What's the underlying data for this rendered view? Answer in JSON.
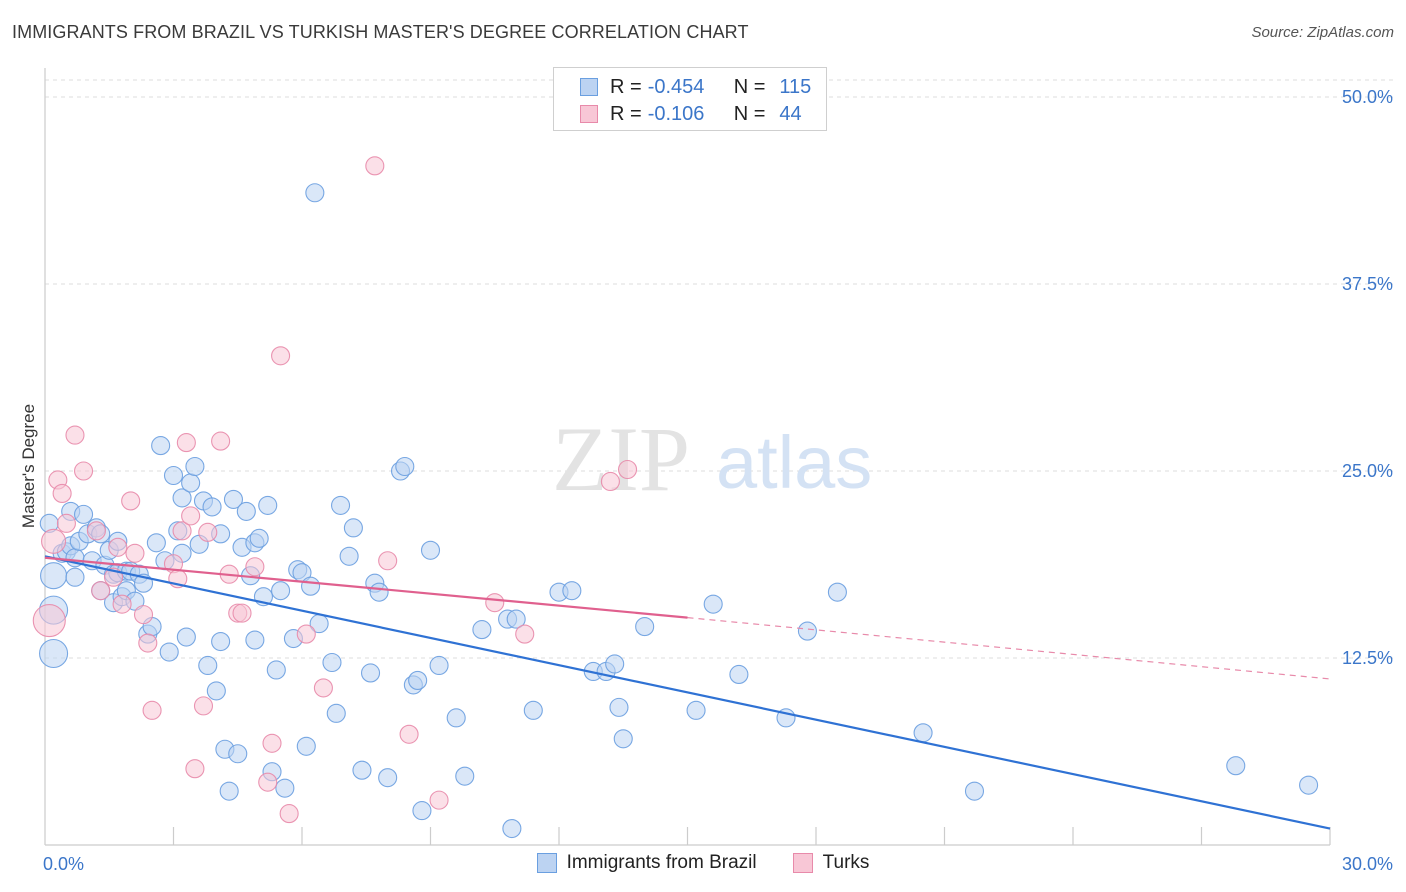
{
  "header": {
    "title": "IMMIGRANTS FROM BRAZIL VS TURKISH MASTER'S DEGREE CORRELATION CHART",
    "source": "Source: ZipAtlas.com"
  },
  "watermark": {
    "part1": "ZIP",
    "part2": "atlas"
  },
  "legend": {
    "rows": [
      {
        "r_label": "R =",
        "r_value": "-0.454",
        "n_label": "N =",
        "n_value": "115",
        "color": "#6a9fe0",
        "fill": "#bcd3f2"
      },
      {
        "r_label": "R =",
        "r_value": "-0.106",
        "n_label": "N =",
        "n_value": "44",
        "color": "#e88aaa",
        "fill": "#f8c7d6"
      }
    ]
  },
  "bottom_legend": [
    {
      "label": "Immigrants from Brazil",
      "color": "#6a9fe0",
      "fill": "#bcd3f2"
    },
    {
      "label": "Turks",
      "color": "#e88aaa",
      "fill": "#f8c7d6"
    }
  ],
  "chart_data": {
    "type": "scatter",
    "ylabel": "Master's Degree",
    "xlabel": "",
    "xlim": [
      0,
      30
    ],
    "ylim": [
      0,
      50
    ],
    "x_tick_labels": [
      "0.0%",
      "30.0%"
    ],
    "y_tick_labels": [
      "12.5%",
      "25.0%",
      "37.5%",
      "50.0%"
    ],
    "y_ticks": [
      12.5,
      25,
      37.5,
      50
    ],
    "x_minor_ticks": [
      3,
      6,
      9,
      12,
      15,
      18,
      21,
      24,
      27,
      30
    ],
    "grid": true,
    "series": [
      {
        "name": "Immigrants from Brazil",
        "color": "#6a9fe0",
        "fill": "#bcd3f2",
        "trend": {
          "x0": 0,
          "y0": 19.3,
          "x1": 30,
          "y1": 1.1
        },
        "points": [
          [
            0.2,
            18.0
          ],
          [
            0.2,
            15.7
          ],
          [
            0.2,
            12.8
          ],
          [
            0.4,
            19.5
          ],
          [
            0.5,
            19.6
          ],
          [
            0.6,
            22.3
          ],
          [
            0.6,
            20.0
          ],
          [
            0.7,
            19.2
          ],
          [
            0.7,
            17.9
          ],
          [
            0.8,
            20.3
          ],
          [
            0.9,
            22.1
          ],
          [
            1.0,
            20.8
          ],
          [
            1.1,
            19.0
          ],
          [
            1.2,
            21.2
          ],
          [
            1.3,
            20.8
          ],
          [
            1.3,
            17.0
          ],
          [
            1.4,
            18.7
          ],
          [
            1.5,
            19.7
          ],
          [
            1.6,
            16.2
          ],
          [
            1.6,
            18.1
          ],
          [
            1.7,
            20.3
          ],
          [
            1.7,
            18.2
          ],
          [
            1.8,
            16.6
          ],
          [
            1.9,
            17.0
          ],
          [
            1.9,
            18.3
          ],
          [
            2.0,
            18.3
          ],
          [
            2.1,
            16.3
          ],
          [
            2.2,
            18.1
          ],
          [
            2.3,
            17.5
          ],
          [
            2.4,
            14.1
          ],
          [
            2.5,
            14.6
          ],
          [
            2.6,
            20.2
          ],
          [
            2.7,
            26.7
          ],
          [
            2.8,
            19.0
          ],
          [
            2.9,
            12.9
          ],
          [
            3.0,
            24.7
          ],
          [
            3.1,
            21.0
          ],
          [
            3.2,
            23.2
          ],
          [
            3.2,
            19.5
          ],
          [
            3.3,
            13.9
          ],
          [
            3.4,
            24.2
          ],
          [
            3.5,
            25.3
          ],
          [
            3.6,
            20.1
          ],
          [
            3.7,
            23.0
          ],
          [
            3.8,
            12.0
          ],
          [
            3.9,
            22.6
          ],
          [
            4.0,
            10.3
          ],
          [
            4.1,
            20.8
          ],
          [
            4.1,
            13.6
          ],
          [
            4.2,
            6.4
          ],
          [
            4.3,
            3.6
          ],
          [
            4.4,
            23.1
          ],
          [
            4.5,
            6.1
          ],
          [
            4.6,
            19.9
          ],
          [
            4.7,
            22.3
          ],
          [
            4.8,
            18.0
          ],
          [
            4.9,
            13.7
          ],
          [
            4.9,
            20.2
          ],
          [
            5.0,
            20.5
          ],
          [
            5.1,
            16.6
          ],
          [
            5.2,
            22.7
          ],
          [
            5.3,
            4.9
          ],
          [
            5.4,
            11.7
          ],
          [
            5.5,
            17.0
          ],
          [
            5.6,
            3.8
          ],
          [
            5.8,
            13.8
          ],
          [
            5.9,
            18.4
          ],
          [
            6.0,
            18.2
          ],
          [
            6.1,
            6.6
          ],
          [
            6.2,
            17.3
          ],
          [
            6.3,
            43.6
          ],
          [
            6.4,
            14.8
          ],
          [
            6.7,
            12.2
          ],
          [
            6.8,
            8.8
          ],
          [
            6.9,
            22.7
          ],
          [
            7.1,
            19.3
          ],
          [
            7.2,
            21.2
          ],
          [
            7.4,
            5.0
          ],
          [
            7.6,
            11.5
          ],
          [
            7.7,
            17.5
          ],
          [
            7.8,
            16.9
          ],
          [
            8.0,
            4.5
          ],
          [
            8.3,
            25.0
          ],
          [
            8.4,
            25.3
          ],
          [
            8.6,
            10.7
          ],
          [
            8.7,
            11.0
          ],
          [
            8.8,
            2.3
          ],
          [
            9.0,
            19.7
          ],
          [
            9.2,
            12.0
          ],
          [
            9.6,
            8.5
          ],
          [
            9.8,
            4.6
          ],
          [
            10.2,
            14.4
          ],
          [
            10.8,
            15.1
          ],
          [
            10.9,
            1.1
          ],
          [
            11.0,
            15.1
          ],
          [
            11.4,
            9.0
          ],
          [
            12.0,
            16.9
          ],
          [
            12.3,
            17.0
          ],
          [
            12.8,
            11.6
          ],
          [
            13.1,
            11.6
          ],
          [
            13.3,
            12.1
          ],
          [
            13.4,
            9.2
          ],
          [
            13.5,
            7.1
          ],
          [
            14.0,
            14.6
          ],
          [
            15.2,
            9.0
          ],
          [
            15.6,
            16.1
          ],
          [
            16.2,
            11.4
          ],
          [
            17.3,
            8.5
          ],
          [
            17.8,
            14.3
          ],
          [
            18.5,
            16.9
          ],
          [
            20.5,
            7.5
          ],
          [
            21.7,
            3.6
          ],
          [
            27.8,
            5.3
          ],
          [
            29.5,
            4.0
          ],
          [
            0.1,
            21.5
          ]
        ]
      },
      {
        "name": "Turks",
        "color": "#e88aaa",
        "fill": "#f8c7d6",
        "trend": {
          "x0": 0,
          "y0": 19.2,
          "x1": 15,
          "y1": 15.2,
          "dash_x1": 30,
          "dash_y1": 11.1
        },
        "points": [
          [
            0.1,
            15.0
          ],
          [
            0.2,
            20.3
          ],
          [
            0.3,
            24.4
          ],
          [
            0.4,
            23.5
          ],
          [
            0.5,
            21.5
          ],
          [
            0.7,
            27.4
          ],
          [
            0.9,
            25.0
          ],
          [
            1.2,
            21.0
          ],
          [
            1.3,
            17.0
          ],
          [
            1.6,
            17.9
          ],
          [
            1.7,
            19.9
          ],
          [
            1.8,
            16.1
          ],
          [
            2.0,
            23.0
          ],
          [
            2.1,
            19.5
          ],
          [
            2.3,
            15.4
          ],
          [
            2.4,
            13.5
          ],
          [
            2.5,
            9.0
          ],
          [
            3.0,
            18.8
          ],
          [
            3.1,
            17.8
          ],
          [
            3.2,
            21.0
          ],
          [
            3.3,
            26.9
          ],
          [
            3.4,
            22.0
          ],
          [
            3.5,
            5.1
          ],
          [
            3.7,
            9.3
          ],
          [
            3.8,
            20.9
          ],
          [
            4.1,
            27.0
          ],
          [
            4.3,
            18.1
          ],
          [
            4.5,
            15.5
          ],
          [
            4.6,
            15.5
          ],
          [
            4.9,
            18.6
          ],
          [
            5.2,
            4.2
          ],
          [
            5.3,
            6.8
          ],
          [
            5.5,
            32.7
          ],
          [
            5.7,
            2.1
          ],
          [
            6.1,
            14.1
          ],
          [
            6.5,
            10.5
          ],
          [
            7.7,
            45.4
          ],
          [
            8.5,
            7.4
          ],
          [
            9.2,
            3.0
          ],
          [
            10.5,
            16.2
          ],
          [
            11.2,
            14.1
          ],
          [
            13.2,
            24.3
          ],
          [
            13.6,
            25.1
          ],
          [
            8.0,
            19.0
          ]
        ]
      }
    ]
  }
}
